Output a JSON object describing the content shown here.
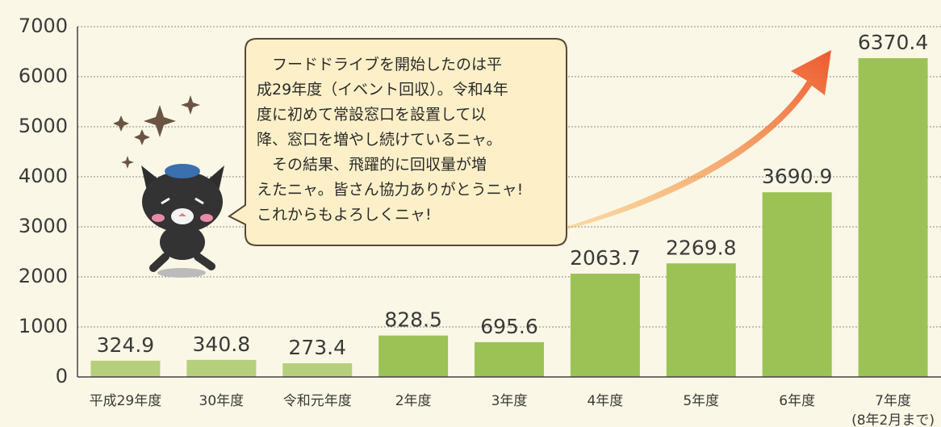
{
  "chart_data": {
    "type": "bar",
    "categories": [
      "平成29年度",
      "30年度",
      "令和元年度",
      "2年度",
      "3年度",
      "4年度",
      "5年度",
      "6年度",
      "7年度"
    ],
    "category_note": "(8年2月まで)",
    "values": [
      324.9,
      340.8,
      273.4,
      828.5,
      695.6,
      2063.7,
      2269.8,
      3690.9,
      6370.4
    ],
    "colors": [
      "#b6cf7c",
      "#b6cf7c",
      "#b6cf7c",
      "#9cc256",
      "#9cc256",
      "#9cc256",
      "#9cc256",
      "#9cc256",
      "#9cc256"
    ],
    "ylim": [
      0,
      7000
    ],
    "yticks": [
      0,
      1000,
      2000,
      3000,
      4000,
      5000,
      6000,
      7000
    ],
    "grid": true,
    "callout": [
      "　フードドライブを開始したのは平",
      "成29年度（イベント回収）。令和4年",
      "度に初めて常設窓口を設置して以",
      "降、窓口を増やし続けているニャ。",
      "　その結果、飛躍的に回収量が増",
      "えたニャ。皆さん協力ありがとうニャ!",
      "これからもよろしくニャ!"
    ]
  }
}
